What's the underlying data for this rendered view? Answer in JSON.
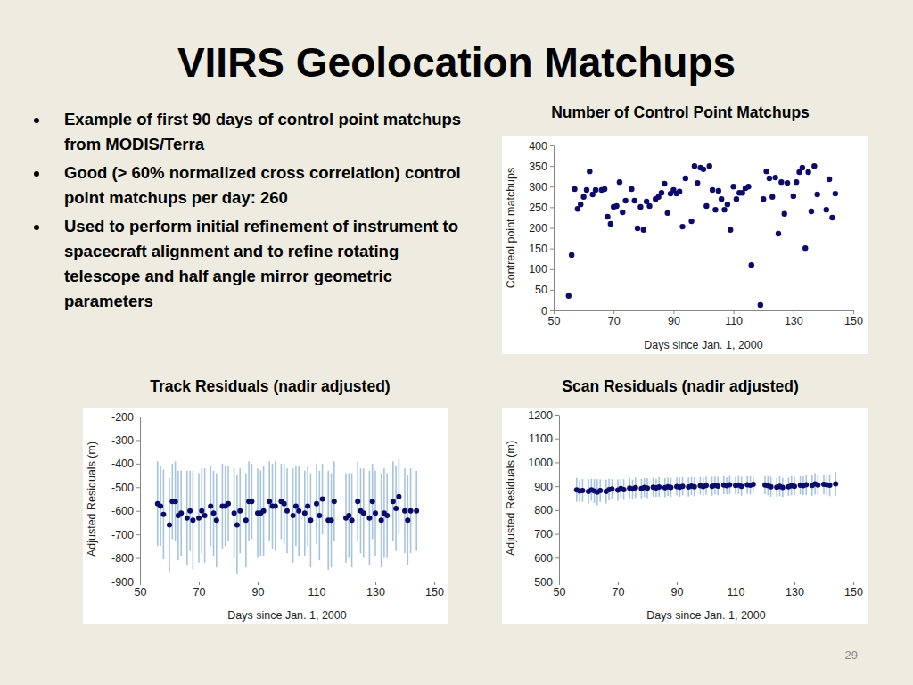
{
  "slide": {
    "title": "VIIRS Geolocation Matchups",
    "bullets": [
      "Example of first 90 days of control point matchups from MODIS/Terra",
      "Good (> 60% normalized cross correlation) control point matchups per day: 260",
      "Used to perform initial refinement of instrument to spacecraft alignment and to refine rotating telescope and half angle mirror geometric parameters"
    ],
    "page_number": "29"
  },
  "chart_data": [
    {
      "type": "scatter",
      "title": "Number of Control Point Matchups",
      "x_label": "Days since Jan. 1, 2000",
      "y_label": "Contreol point matchups",
      "x": [
        55,
        56,
        57,
        58,
        59,
        60,
        61,
        62,
        63,
        64,
        66,
        67,
        68,
        69,
        70,
        71,
        72,
        73,
        74,
        76,
        77,
        78,
        79,
        80,
        81,
        82,
        84,
        85,
        86,
        87,
        88,
        89,
        90,
        91,
        92,
        93,
        94,
        96,
        97,
        98,
        99,
        100,
        101,
        102,
        103,
        104,
        105,
        106,
        107,
        108,
        109,
        110,
        111,
        112,
        113,
        114,
        115,
        116,
        119,
        120,
        121,
        122,
        123,
        124,
        125,
        126,
        127,
        128,
        130,
        131,
        132,
        133,
        134,
        135,
        136,
        137,
        138,
        141,
        142,
        143,
        144
      ],
      "values": [
        35,
        134,
        294,
        246,
        257,
        275,
        292,
        337,
        281,
        292,
        292,
        294,
        227,
        210,
        251,
        253,
        311,
        238,
        266,
        294,
        266,
        199,
        251,
        195,
        264,
        253,
        270,
        275,
        285,
        307,
        236,
        283,
        292,
        283,
        288,
        203,
        320,
        216,
        350,
        309,
        346,
        342,
        253,
        350,
        292,
        244,
        290,
        270,
        244,
        257,
        195,
        300,
        270,
        285,
        285,
        296,
        300,
        110,
        13,
        270,
        337,
        320,
        275,
        322,
        186,
        311,
        234,
        309,
        277,
        311,
        335,
        346,
        151,
        335,
        240,
        350,
        281,
        244,
        318,
        225,
        283
      ],
      "xlim": [
        50,
        150
      ],
      "xticks": [
        50,
        70,
        90,
        110,
        130,
        150
      ],
      "ylim": [
        0,
        400
      ],
      "yticks": [
        0,
        50,
        100,
        150,
        200,
        250,
        300,
        350,
        400
      ],
      "color": "#0b0b6b",
      "marker": "circle",
      "grid": false
    },
    {
      "type": "errorbar",
      "title": "Track Residuals (nadir adjusted)",
      "x_label": "Days since Jan. 1, 2000",
      "y_label": "Adjusted Residuals (m)",
      "x": [
        56,
        57,
        58,
        60,
        61,
        62,
        63,
        64,
        66,
        67,
        68,
        70,
        71,
        72,
        74,
        75,
        76,
        78,
        79,
        80,
        82,
        83,
        84,
        86,
        87,
        88,
        90,
        91,
        92,
        94,
        95,
        96,
        98,
        99,
        100,
        102,
        103,
        104,
        106,
        107,
        108,
        110,
        111,
        112,
        114,
        115,
        116,
        120,
        121,
        122,
        124,
        125,
        126,
        128,
        129,
        130,
        132,
        133,
        134,
        136,
        137,
        138,
        140,
        141,
        142,
        144
      ],
      "values": [
        -570,
        -580,
        -615,
        -660,
        -560,
        -560,
        -620,
        -610,
        -630,
        -600,
        -640,
        -630,
        -600,
        -620,
        -580,
        -610,
        -640,
        -580,
        -580,
        -570,
        -610,
        -660,
        -600,
        -640,
        -560,
        -560,
        -610,
        -610,
        -600,
        -560,
        -580,
        -580,
        -560,
        -570,
        -600,
        -620,
        -580,
        -600,
        -610,
        -580,
        -640,
        -570,
        -620,
        -550,
        -640,
        -640,
        -560,
        -630,
        -620,
        -640,
        -560,
        -600,
        -610,
        -630,
        -560,
        -610,
        -640,
        -610,
        -620,
        -560,
        -590,
        -540,
        -600,
        -640,
        -600,
        -600
      ],
      "errors": [
        180,
        170,
        190,
        200,
        160,
        170,
        190,
        180,
        200,
        170,
        210,
        190,
        180,
        200,
        170,
        180,
        200,
        180,
        170,
        160,
        190,
        210,
        180,
        200,
        170,
        160,
        190,
        180,
        190,
        170,
        180,
        190,
        160,
        170,
        180,
        200,
        170,
        190,
        180,
        170,
        200,
        170,
        190,
        150,
        210,
        200,
        170,
        190,
        180,
        200,
        170,
        180,
        190,
        200,
        160,
        180,
        200,
        190,
        180,
        170,
        180,
        160,
        180,
        190,
        180,
        170
      ],
      "xlim": [
        50,
        150
      ],
      "xticks": [
        50,
        70,
        90,
        110,
        130,
        150
      ],
      "ylim": [
        -900,
        -200
      ],
      "yticks": [
        -900,
        -800,
        -700,
        -600,
        -500,
        -400,
        -300,
        -200
      ],
      "color": "#0b0b6b",
      "marker": "circle",
      "grid": false
    },
    {
      "type": "errorbar",
      "title": "Scan Residuals (nadir adjusted)",
      "x_label": "Days since Jan. 1, 2000",
      "y_label": "Adjusted Residuals (m)",
      "x": [
        56,
        57,
        58,
        60,
        61,
        62,
        63,
        64,
        66,
        67,
        68,
        70,
        71,
        72,
        74,
        75,
        76,
        78,
        79,
        80,
        82,
        83,
        84,
        86,
        87,
        88,
        90,
        91,
        92,
        94,
        95,
        96,
        98,
        99,
        100,
        102,
        103,
        104,
        106,
        107,
        108,
        110,
        111,
        112,
        114,
        115,
        116,
        120,
        121,
        122,
        124,
        125,
        126,
        128,
        129,
        130,
        132,
        133,
        134,
        136,
        137,
        138,
        140,
        141,
        142,
        144
      ],
      "values": [
        885,
        880,
        882,
        878,
        885,
        880,
        875,
        882,
        878,
        886,
        888,
        884,
        890,
        886,
        892,
        888,
        894,
        890,
        895,
        892,
        896,
        893,
        897,
        894,
        898,
        895,
        899,
        896,
        900,
        897,
        901,
        898,
        902,
        899,
        903,
        900,
        904,
        901,
        905,
        902,
        906,
        903,
        905,
        900,
        906,
        904,
        908,
        905,
        902,
        898,
        896,
        900,
        895,
        898,
        902,
        900,
        904,
        902,
        906,
        903,
        910,
        905,
        908,
        906,
        904,
        910
      ],
      "errors": [
        50,
        45,
        48,
        52,
        46,
        50,
        55,
        48,
        50,
        45,
        42,
        45,
        40,
        44,
        42,
        40,
        43,
        41,
        40,
        42,
        40,
        38,
        41,
        40,
        39,
        40,
        38,
        40,
        39,
        40,
        38,
        40,
        37,
        39,
        38,
        40,
        37,
        39,
        38,
        36,
        38,
        36,
        38,
        40,
        37,
        38,
        36,
        38,
        40,
        42,
        40,
        42,
        40,
        38,
        40,
        39,
        38,
        40,
        42,
        44,
        45,
        40,
        42,
        44,
        46,
        50
      ],
      "xlim": [
        50,
        150
      ],
      "xticks": [
        50,
        70,
        90,
        110,
        130,
        150
      ],
      "ylim": [
        500,
        1200
      ],
      "yticks": [
        500,
        600,
        700,
        800,
        900,
        1000,
        1100,
        1200
      ],
      "color": "#0b0b6b",
      "marker": "circle",
      "grid": false
    }
  ]
}
